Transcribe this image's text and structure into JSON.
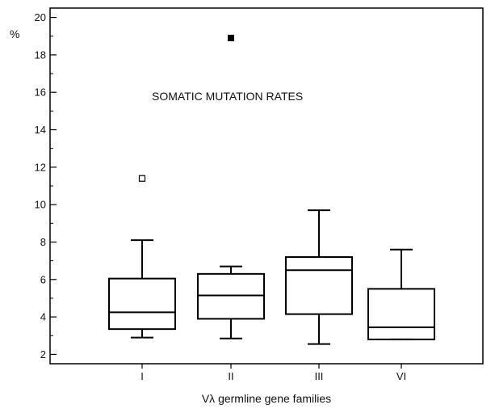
{
  "chart_data": {
    "type": "box",
    "title": "SOMATIC MUTATION RATES",
    "ylabel": "%",
    "xlabel": "Vλ germline gene families",
    "ylim": [
      1.5,
      20.5
    ],
    "yticks": [
      2,
      4,
      6,
      8,
      10,
      12,
      14,
      16,
      18,
      20
    ],
    "grid": false,
    "categories": [
      "I",
      "II",
      "III",
      "VI"
    ],
    "boxes": [
      {
        "category": "I",
        "whisker_low": 2.9,
        "q1": 3.35,
        "median": 4.25,
        "q3": 6.05,
        "whisker_high": 8.1,
        "outliers": [
          {
            "value": 11.4,
            "style": "open"
          }
        ]
      },
      {
        "category": "II",
        "whisker_low": 2.85,
        "q1": 3.9,
        "median": 5.15,
        "q3": 6.3,
        "whisker_high": 6.7,
        "outliers": [
          {
            "value": 18.9,
            "style": "filled"
          }
        ]
      },
      {
        "category": "III",
        "whisker_low": 2.55,
        "q1": 4.15,
        "median": 6.5,
        "q3": 7.2,
        "whisker_high": 9.7,
        "outliers": []
      },
      {
        "category": "VI",
        "whisker_low": 2.8,
        "q1": 2.8,
        "median": 3.45,
        "q3": 5.5,
        "whisker_high": 7.6,
        "outliers": []
      }
    ]
  }
}
